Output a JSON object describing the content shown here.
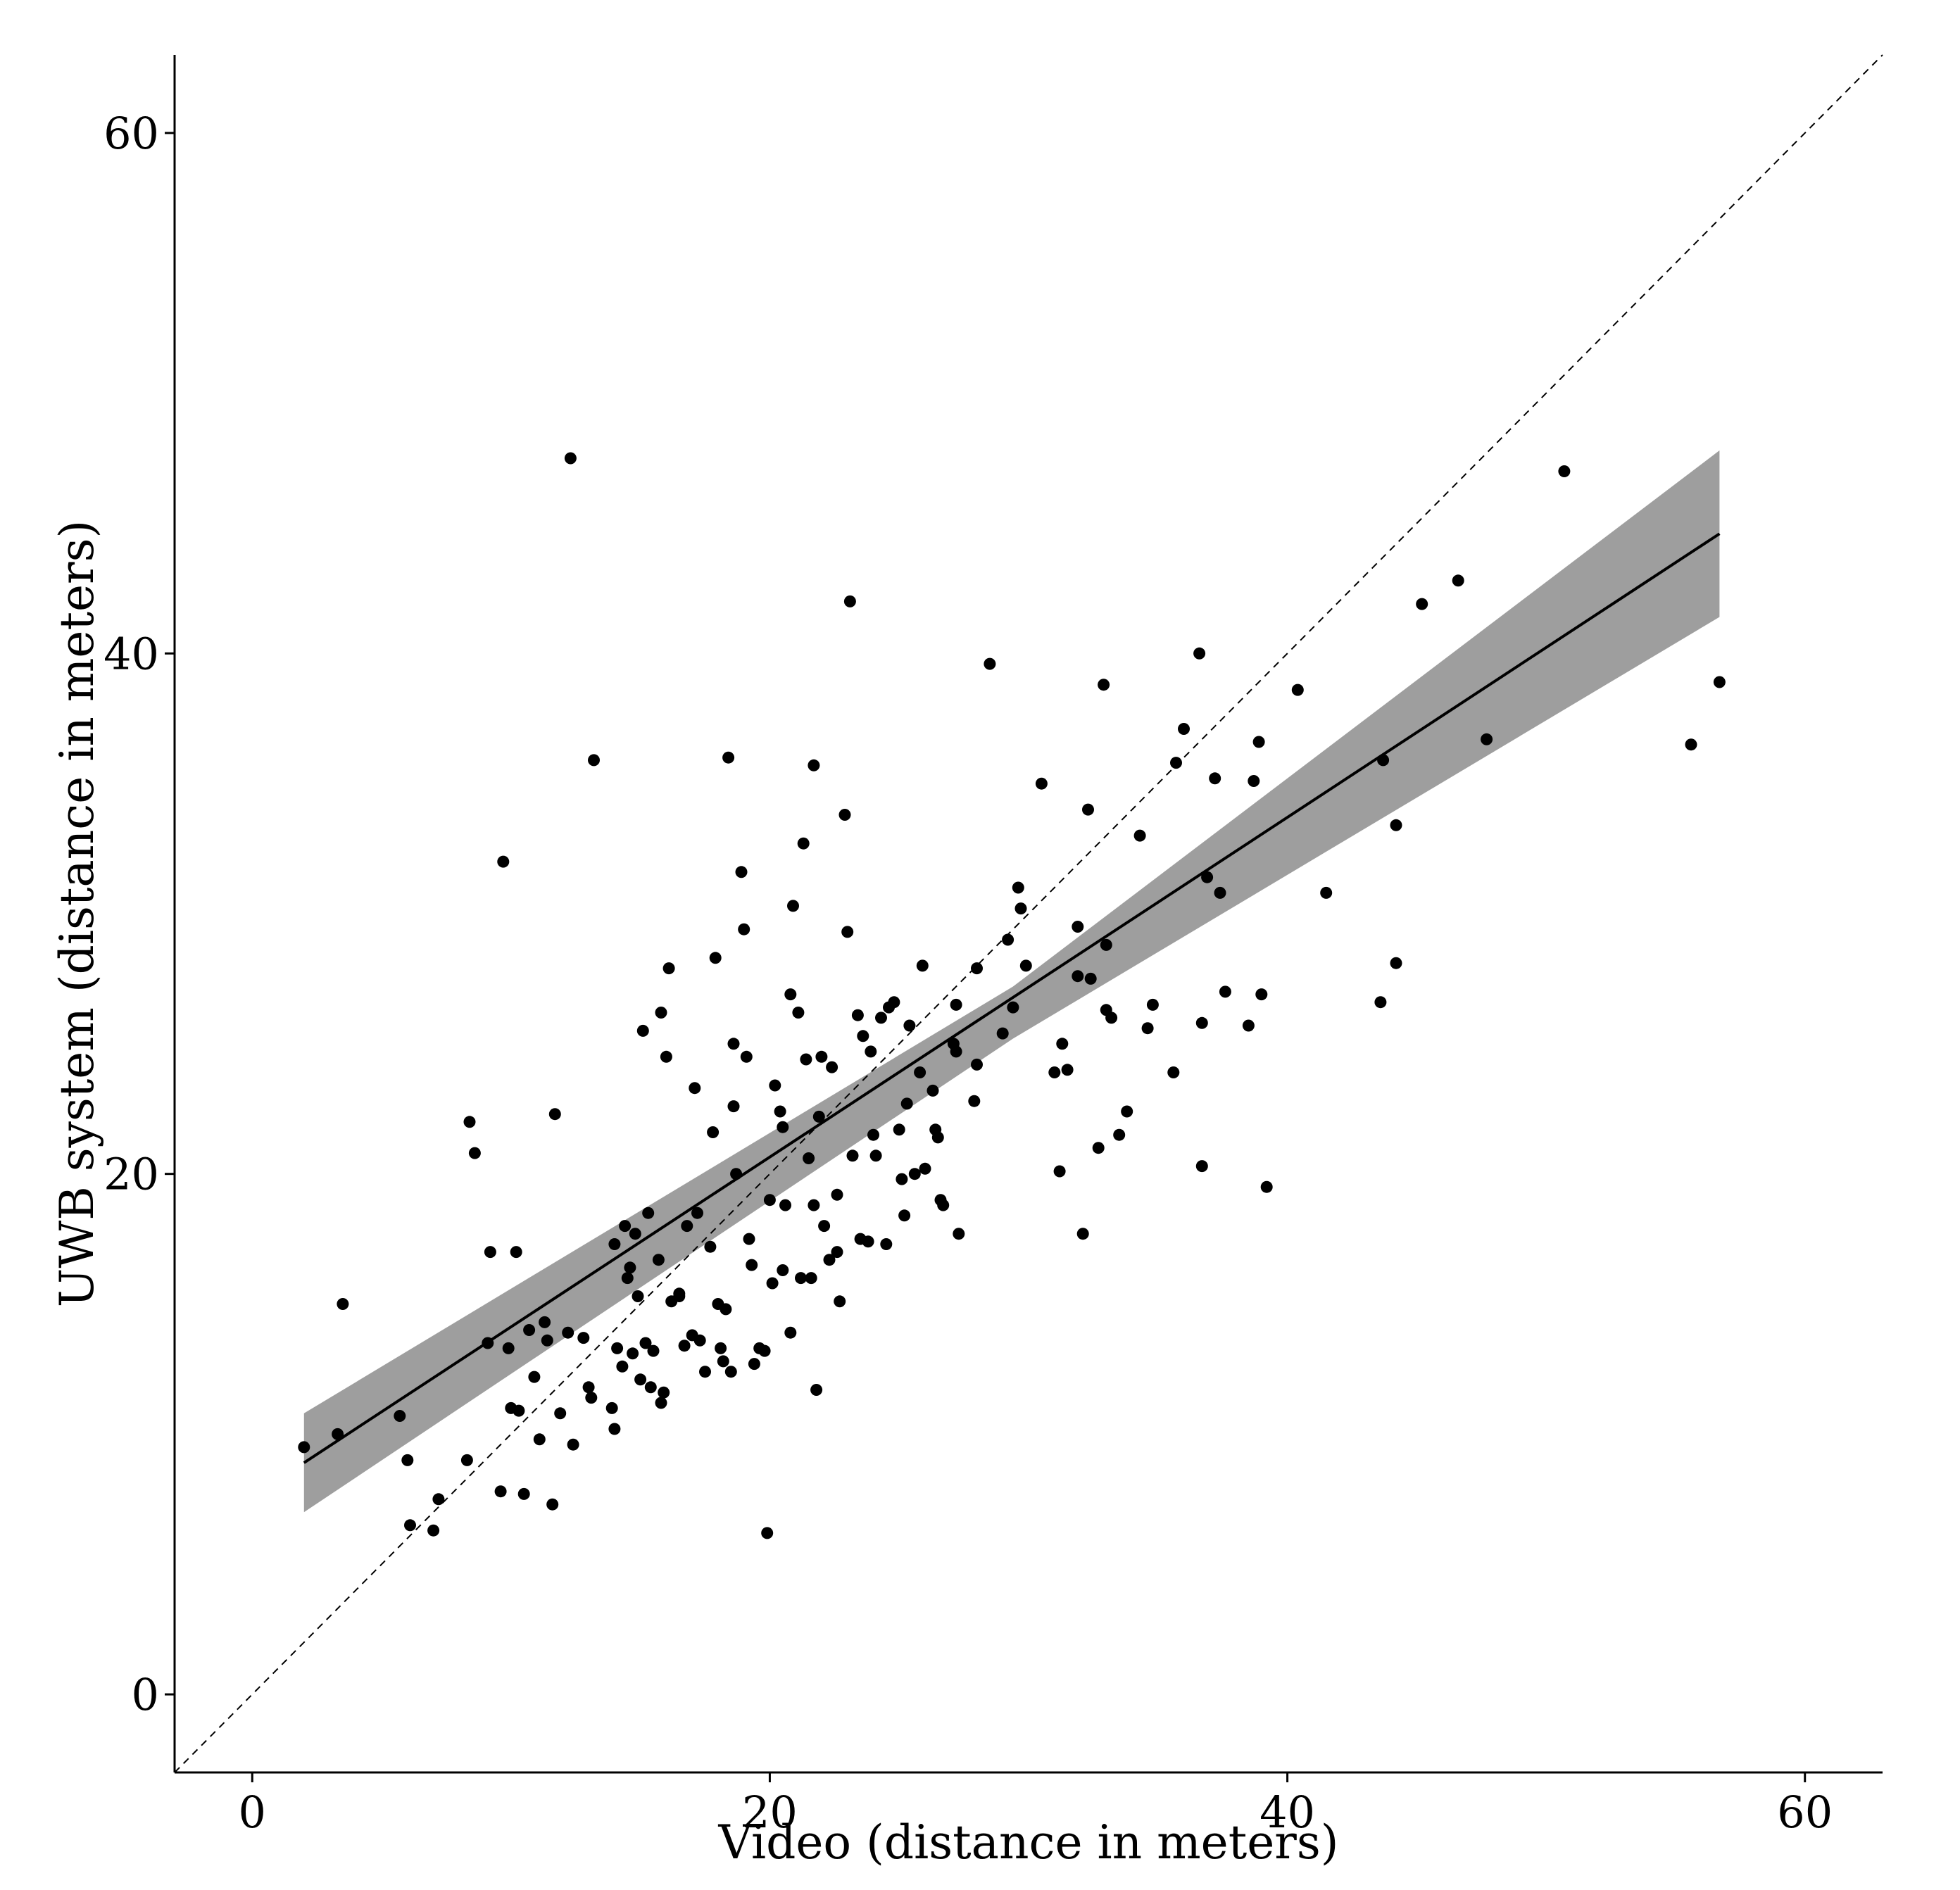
{
  "chart_data": {
    "type": "scatter",
    "title": "",
    "xlabel": "Video (distance in meters)",
    "ylabel": "UWB system (distance in meters)",
    "xlim": [
      -3,
      63
    ],
    "ylim": [
      -3,
      63
    ],
    "x_ticks": [
      "0",
      "20",
      "40",
      "60"
    ],
    "y_ticks": [
      "0",
      "20",
      "40",
      "60"
    ],
    "x_tick_values": [
      0,
      20,
      40,
      60
    ],
    "y_tick_values": [
      0,
      20,
      40,
      60
    ],
    "grid": false,
    "legend": "none",
    "point_color": "#000000",
    "band_color": "#999999",
    "points": [
      [
        2.0,
        9.5
      ],
      [
        3.3,
        10.0
      ],
      [
        3.5,
        15.0
      ],
      [
        5.7,
        10.7
      ],
      [
        6.0,
        9.0
      ],
      [
        6.1,
        6.5
      ],
      [
        7.0,
        6.3
      ],
      [
        7.2,
        7.5
      ],
      [
        8.4,
        22.0
      ],
      [
        8.3,
        9.0
      ],
      [
        8.6,
        20.8
      ],
      [
        9.1,
        13.5
      ],
      [
        9.2,
        17.0
      ],
      [
        9.6,
        7.8
      ],
      [
        9.7,
        32.0
      ],
      [
        9.9,
        13.3
      ],
      [
        10.0,
        11.0
      ],
      [
        10.2,
        17.0
      ],
      [
        10.3,
        10.9
      ],
      [
        10.5,
        7.7
      ],
      [
        10.7,
        14.0
      ],
      [
        10.9,
        12.2
      ],
      [
        11.1,
        9.8
      ],
      [
        11.3,
        14.3
      ],
      [
        11.4,
        13.6
      ],
      [
        11.6,
        7.3
      ],
      [
        11.7,
        22.3
      ],
      [
        11.9,
        10.8
      ],
      [
        12.2,
        13.9
      ],
      [
        12.4,
        9.6
      ],
      [
        12.3,
        47.5
      ],
      [
        12.8,
        13.7
      ],
      [
        13.0,
        11.8
      ],
      [
        13.1,
        11.4
      ],
      [
        13.2,
        35.9
      ],
      [
        13.9,
        11.0
      ],
      [
        14.0,
        10.2
      ],
      [
        14.1,
        13.3
      ],
      [
        14.0,
        17.3
      ],
      [
        14.3,
        12.6
      ],
      [
        14.4,
        18.0
      ],
      [
        14.6,
        16.4
      ],
      [
        14.7,
        13.1
      ],
      [
        14.5,
        16.0
      ],
      [
        14.8,
        17.7
      ],
      [
        14.9,
        15.3
      ],
      [
        15.0,
        12.1
      ],
      [
        15.1,
        25.5
      ],
      [
        15.2,
        13.5
      ],
      [
        15.3,
        18.5
      ],
      [
        15.4,
        11.8
      ],
      [
        15.5,
        13.2
      ],
      [
        15.7,
        16.7
      ],
      [
        15.8,
        11.2
      ],
      [
        15.8,
        26.2
      ],
      [
        15.9,
        11.6
      ],
      [
        16.0,
        24.5
      ],
      [
        16.1,
        27.9
      ],
      [
        16.2,
        15.1
      ],
      [
        16.5,
        15.4
      ],
      [
        16.5,
        15.3
      ],
      [
        16.7,
        13.4
      ],
      [
        16.8,
        18.0
      ],
      [
        17.0,
        13.8
      ],
      [
        17.1,
        23.3
      ],
      [
        17.2,
        18.5
      ],
      [
        17.3,
        13.6
      ],
      [
        17.5,
        12.4
      ],
      [
        17.7,
        17.2
      ],
      [
        17.8,
        21.6
      ],
      [
        17.9,
        28.3
      ],
      [
        18.0,
        15.0
      ],
      [
        18.1,
        13.3
      ],
      [
        18.2,
        12.8
      ],
      [
        18.3,
        14.8
      ],
      [
        18.4,
        36.0
      ],
      [
        18.5,
        12.4
      ],
      [
        18.6,
        25.0
      ],
      [
        18.6,
        22.6
      ],
      [
        18.7,
        20.0
      ],
      [
        18.9,
        31.6
      ],
      [
        19.0,
        29.4
      ],
      [
        19.1,
        24.5
      ],
      [
        19.2,
        17.5
      ],
      [
        19.3,
        16.5
      ],
      [
        19.4,
        12.7
      ],
      [
        19.6,
        13.3
      ],
      [
        19.8,
        13.2
      ],
      [
        19.9,
        6.2
      ],
      [
        20.0,
        19.0
      ],
      [
        20.1,
        15.8
      ],
      [
        20.2,
        23.4
      ],
      [
        20.4,
        22.4
      ],
      [
        20.5,
        16.3
      ],
      [
        20.5,
        21.8
      ],
      [
        20.6,
        18.8
      ],
      [
        20.8,
        13.9
      ],
      [
        20.9,
        30.3
      ],
      [
        20.8,
        26.9
      ],
      [
        21.1,
        26.2
      ],
      [
        21.2,
        16.0
      ],
      [
        21.3,
        32.7
      ],
      [
        21.4,
        24.4
      ],
      [
        21.5,
        20.6
      ],
      [
        21.6,
        16.0
      ],
      [
        21.7,
        35.7
      ],
      [
        21.7,
        18.8
      ],
      [
        21.8,
        11.7
      ],
      [
        21.9,
        22.2
      ],
      [
        22.0,
        24.5
      ],
      [
        22.1,
        18.0
      ],
      [
        22.3,
        16.7
      ],
      [
        22.4,
        24.1
      ],
      [
        22.6,
        17.0
      ],
      [
        22.6,
        19.2
      ],
      [
        22.7,
        15.1
      ],
      [
        22.9,
        33.8
      ],
      [
        23.0,
        29.3
      ],
      [
        23.1,
        42.0
      ],
      [
        23.2,
        20.7
      ],
      [
        23.4,
        26.1
      ],
      [
        23.5,
        17.5
      ],
      [
        23.6,
        25.3
      ],
      [
        23.8,
        17.4
      ],
      [
        23.9,
        24.7
      ],
      [
        24.0,
        21.5
      ],
      [
        24.1,
        20.7
      ],
      [
        24.3,
        26.0
      ],
      [
        24.5,
        17.3
      ],
      [
        24.6,
        26.4
      ],
      [
        24.8,
        26.6
      ],
      [
        25.0,
        21.7
      ],
      [
        25.1,
        19.8
      ],
      [
        25.2,
        18.4
      ],
      [
        25.3,
        22.7
      ],
      [
        25.4,
        25.7
      ],
      [
        25.6,
        20.0
      ],
      [
        25.8,
        23.9
      ],
      [
        25.9,
        28.0
      ],
      [
        26.0,
        20.2
      ],
      [
        26.3,
        23.2
      ],
      [
        26.4,
        21.7
      ],
      [
        26.5,
        21.4
      ],
      [
        26.6,
        19.0
      ],
      [
        26.7,
        18.8
      ],
      [
        27.1,
        25.0
      ],
      [
        27.2,
        26.5
      ],
      [
        27.3,
        17.7
      ],
      [
        27.2,
        24.7
      ],
      [
        27.9,
        22.8
      ],
      [
        28.0,
        27.9
      ],
      [
        28.0,
        24.2
      ],
      [
        28.5,
        39.6
      ],
      [
        29.0,
        25.4
      ],
      [
        29.2,
        29.0
      ],
      [
        29.4,
        26.4
      ],
      [
        29.6,
        31.0
      ],
      [
        29.7,
        30.2
      ],
      [
        29.9,
        28.0
      ],
      [
        30.5,
        35.0
      ],
      [
        31.0,
        23.9
      ],
      [
        31.2,
        20.1
      ],
      [
        31.3,
        25.0
      ],
      [
        31.5,
        24.0
      ],
      [
        31.9,
        29.5
      ],
      [
        31.9,
        27.6
      ],
      [
        32.1,
        17.7
      ],
      [
        32.3,
        34.0
      ],
      [
        32.4,
        27.5
      ],
      [
        32.7,
        21.0
      ],
      [
        32.9,
        38.8
      ],
      [
        33.0,
        26.3
      ],
      [
        33.0,
        28.8
      ],
      [
        33.2,
        26.0
      ],
      [
        33.5,
        21.5
      ],
      [
        33.8,
        22.4
      ],
      [
        34.3,
        33.0
      ],
      [
        34.6,
        25.6
      ],
      [
        34.8,
        26.5
      ],
      [
        35.6,
        23.9
      ],
      [
        35.7,
        35.8
      ],
      [
        36.0,
        37.1
      ],
      [
        36.6,
        40.0
      ],
      [
        36.7,
        20.3
      ],
      [
        36.7,
        25.8
      ],
      [
        36.9,
        31.4
      ],
      [
        37.2,
        35.2
      ],
      [
        37.4,
        30.8
      ],
      [
        37.6,
        27.0
      ],
      [
        38.5,
        25.7
      ],
      [
        38.7,
        35.1
      ],
      [
        38.9,
        36.6
      ],
      [
        39.0,
        26.9
      ],
      [
        39.2,
        19.5
      ],
      [
        40.4,
        38.6
      ],
      [
        41.5,
        30.8
      ],
      [
        43.7,
        35.9
      ],
      [
        43.6,
        26.6
      ],
      [
        44.2,
        33.4
      ],
      [
        44.2,
        28.1
      ],
      [
        45.2,
        41.9
      ],
      [
        46.6,
        42.8
      ],
      [
        47.7,
        36.7
      ],
      [
        50.7,
        47.0
      ],
      [
        55.6,
        36.5
      ],
      [
        56.7,
        38.9
      ]
    ],
    "fit_line": {
      "x": [
        2.0,
        56.7
      ],
      "y": [
        8.9,
        44.6
      ]
    },
    "confidence_band": {
      "x": [
        2.0,
        29.4,
        56.7
      ],
      "lower": [
        7.0,
        25.2,
        41.4
      ],
      "upper": [
        10.8,
        27.2,
        47.8
      ]
    },
    "identity_line": {
      "x": [
        -3,
        63
      ],
      "y": [
        -3,
        63
      ]
    }
  }
}
